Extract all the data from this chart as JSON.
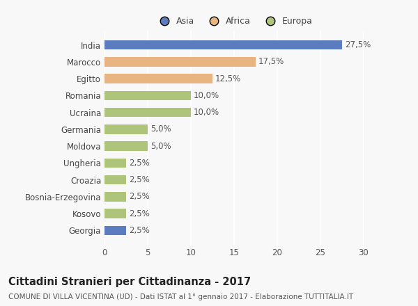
{
  "categories": [
    "India",
    "Marocco",
    "Egitto",
    "Romania",
    "Ucraina",
    "Germania",
    "Moldova",
    "Ungheria",
    "Croazia",
    "Bosnia-Erzegovina",
    "Kosovo",
    "Georgia"
  ],
  "values": [
    27.5,
    17.5,
    12.5,
    10.0,
    10.0,
    5.0,
    5.0,
    2.5,
    2.5,
    2.5,
    2.5,
    2.5
  ],
  "labels": [
    "27,5%",
    "17,5%",
    "12,5%",
    "10,0%",
    "10,0%",
    "5,0%",
    "5,0%",
    "2,5%",
    "2,5%",
    "2,5%",
    "2,5%",
    "2,5%"
  ],
  "colors": [
    "#5b7dbf",
    "#e8b482",
    "#e8b482",
    "#adc47a",
    "#adc47a",
    "#adc47a",
    "#adc47a",
    "#adc47a",
    "#adc47a",
    "#adc47a",
    "#adc47a",
    "#5b7dbf"
  ],
  "legend_labels": [
    "Asia",
    "Africa",
    "Europa"
  ],
  "legend_colors": [
    "#5b7dbf",
    "#e8b482",
    "#adc47a"
  ],
  "title": "Cittadini Stranieri per Cittadinanza - 2017",
  "subtitle": "COMUNE DI VILLA VICENTINA (UD) - Dati ISTAT al 1° gennaio 2017 - Elaborazione TUTTITALIA.IT",
  "xlim": [
    0,
    30
  ],
  "xticks": [
    0,
    5,
    10,
    15,
    20,
    25,
    30
  ],
  "background_color": "#f8f8f8",
  "bar_height": 0.55,
  "label_fontsize": 8.5,
  "title_fontsize": 10.5,
  "subtitle_fontsize": 7.5,
  "tick_fontsize": 8.5,
  "legend_fontsize": 9
}
